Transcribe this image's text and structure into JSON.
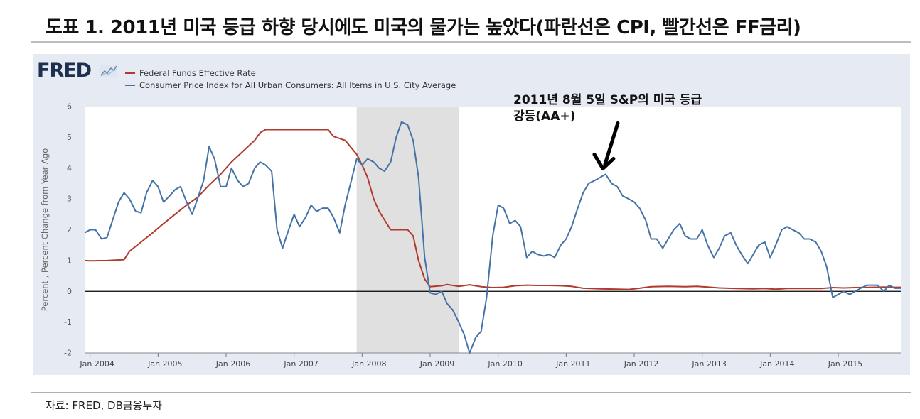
{
  "page": {
    "title": "도표 1. 2011년 미국 등급 하향 당시에도 미국의 물가는 높았다(파란선은 CPI, 빨간선은 FF금리)",
    "source": "자료: FRED, DB금융투자"
  },
  "colors": {
    "panel": "#e6ebf3",
    "plot": "#ffffff",
    "recession": "#e0e0e0",
    "ffr": "#b03a2e",
    "cpi": "#4572a7"
  },
  "chart_data": {
    "type": "line",
    "brand": "FRED",
    "title": "",
    "ylabel": "Percent , Percent Change from Year Ago",
    "ylim": [
      -2,
      6
    ],
    "yticks": [
      "6",
      "5",
      "4",
      "3",
      "2",
      "1",
      "0",
      "-1",
      "-2"
    ],
    "xlim": [
      2003.92,
      2015.92
    ],
    "xticks": [
      {
        "label": "Jan 2004",
        "x": 2004
      },
      {
        "label": "Jan 2005",
        "x": 2005
      },
      {
        "label": "Jan 2006",
        "x": 2006
      },
      {
        "label": "Jan 2007",
        "x": 2007
      },
      {
        "label": "Jan 2008",
        "x": 2008
      },
      {
        "label": "Jan 2009",
        "x": 2009
      },
      {
        "label": "Jan 2010",
        "x": 2010
      },
      {
        "label": "Jan 2011",
        "x": 2011
      },
      {
        "label": "Jan 2012",
        "x": 2012
      },
      {
        "label": "Jan 2013",
        "x": 2013
      },
      {
        "label": "Jan 2014",
        "x": 2014
      },
      {
        "label": "Jan 2015",
        "x": 2015
      }
    ],
    "recession": {
      "start": 2007.92,
      "end": 2009.42
    },
    "zero_line": 0,
    "annotation": {
      "lines": [
        "2011년 8월 5일 S&P의 미국 등급",
        "강등(AA+)"
      ],
      "arrow_target": {
        "x": 2011.55,
        "y": 3.8
      }
    },
    "series": [
      {
        "name": "Federal Funds Effective Rate",
        "color": "#b03a2e",
        "points": [
          [
            2003.92,
            1.0
          ],
          [
            2004.0,
            0.99
          ],
          [
            2004.25,
            1.0
          ],
          [
            2004.5,
            1.03
          ],
          [
            2004.58,
            1.3
          ],
          [
            2004.75,
            1.6
          ],
          [
            2004.92,
            1.9
          ],
          [
            2005.08,
            2.2
          ],
          [
            2005.25,
            2.5
          ],
          [
            2005.42,
            2.8
          ],
          [
            2005.58,
            3.05
          ],
          [
            2005.75,
            3.45
          ],
          [
            2005.92,
            3.8
          ],
          [
            2006.08,
            4.2
          ],
          [
            2006.25,
            4.55
          ],
          [
            2006.42,
            4.9
          ],
          [
            2006.5,
            5.15
          ],
          [
            2006.58,
            5.25
          ],
          [
            2006.75,
            5.25
          ],
          [
            2007.0,
            5.25
          ],
          [
            2007.25,
            5.25
          ],
          [
            2007.5,
            5.25
          ],
          [
            2007.58,
            5.03
          ],
          [
            2007.75,
            4.9
          ],
          [
            2007.92,
            4.45
          ],
          [
            2008.0,
            4.1
          ],
          [
            2008.08,
            3.7
          ],
          [
            2008.17,
            3.0
          ],
          [
            2008.25,
            2.6
          ],
          [
            2008.42,
            2.0
          ],
          [
            2008.58,
            2.0
          ],
          [
            2008.67,
            2.0
          ],
          [
            2008.75,
            1.8
          ],
          [
            2008.83,
            1.0
          ],
          [
            2008.92,
            0.4
          ],
          [
            2009.0,
            0.15
          ],
          [
            2009.17,
            0.18
          ],
          [
            2009.25,
            0.22
          ],
          [
            2009.42,
            0.16
          ],
          [
            2009.58,
            0.21
          ],
          [
            2009.75,
            0.15
          ],
          [
            2009.92,
            0.12
          ],
          [
            2010.08,
            0.13
          ],
          [
            2010.25,
            0.18
          ],
          [
            2010.42,
            0.2
          ],
          [
            2010.58,
            0.19
          ],
          [
            2010.75,
            0.19
          ],
          [
            2010.92,
            0.18
          ],
          [
            2011.08,
            0.16
          ],
          [
            2011.25,
            0.1
          ],
          [
            2011.5,
            0.08
          ],
          [
            2011.75,
            0.07
          ],
          [
            2011.92,
            0.06
          ],
          [
            2012.08,
            0.1
          ],
          [
            2012.25,
            0.15
          ],
          [
            2012.5,
            0.16
          ],
          [
            2012.75,
            0.15
          ],
          [
            2012.92,
            0.16
          ],
          [
            2013.08,
            0.14
          ],
          [
            2013.25,
            0.11
          ],
          [
            2013.5,
            0.09
          ],
          [
            2013.75,
            0.08
          ],
          [
            2013.92,
            0.09
          ],
          [
            2014.08,
            0.07
          ],
          [
            2014.25,
            0.09
          ],
          [
            2014.5,
            0.09
          ],
          [
            2014.75,
            0.09
          ],
          [
            2014.92,
            0.12
          ],
          [
            2015.08,
            0.11
          ],
          [
            2015.25,
            0.12
          ],
          [
            2015.5,
            0.13
          ],
          [
            2015.67,
            0.14
          ],
          [
            2015.83,
            0.13
          ],
          [
            2015.92,
            0.13
          ]
        ]
      },
      {
        "name": "Consumer Price Index for All Urban Consumers: All Items in U.S. City Average",
        "color": "#4572a7",
        "points": [
          [
            2003.92,
            1.9
          ],
          [
            2004.0,
            2.0
          ],
          [
            2004.08,
            2.0
          ],
          [
            2004.17,
            1.7
          ],
          [
            2004.25,
            1.75
          ],
          [
            2004.33,
            2.3
          ],
          [
            2004.42,
            2.9
          ],
          [
            2004.5,
            3.2
          ],
          [
            2004.58,
            3.0
          ],
          [
            2004.67,
            2.6
          ],
          [
            2004.75,
            2.55
          ],
          [
            2004.83,
            3.2
          ],
          [
            2004.92,
            3.6
          ],
          [
            2005.0,
            3.4
          ],
          [
            2005.08,
            2.9
          ],
          [
            2005.17,
            3.1
          ],
          [
            2005.25,
            3.3
          ],
          [
            2005.33,
            3.4
          ],
          [
            2005.42,
            2.9
          ],
          [
            2005.5,
            2.5
          ],
          [
            2005.58,
            3.0
          ],
          [
            2005.67,
            3.6
          ],
          [
            2005.75,
            4.7
          ],
          [
            2005.83,
            4.3
          ],
          [
            2005.92,
            3.4
          ],
          [
            2006.0,
            3.4
          ],
          [
            2006.08,
            4.0
          ],
          [
            2006.17,
            3.6
          ],
          [
            2006.25,
            3.4
          ],
          [
            2006.33,
            3.5
          ],
          [
            2006.42,
            4.0
          ],
          [
            2006.5,
            4.2
          ],
          [
            2006.58,
            4.1
          ],
          [
            2006.67,
            3.9
          ],
          [
            2006.75,
            2.0
          ],
          [
            2006.83,
            1.4
          ],
          [
            2006.92,
            2.0
          ],
          [
            2007.0,
            2.5
          ],
          [
            2007.08,
            2.1
          ],
          [
            2007.17,
            2.4
          ],
          [
            2007.25,
            2.8
          ],
          [
            2007.33,
            2.6
          ],
          [
            2007.42,
            2.7
          ],
          [
            2007.5,
            2.7
          ],
          [
            2007.58,
            2.4
          ],
          [
            2007.67,
            1.9
          ],
          [
            2007.75,
            2.8
          ],
          [
            2007.83,
            3.5
          ],
          [
            2007.92,
            4.3
          ],
          [
            2008.0,
            4.1
          ],
          [
            2008.08,
            4.3
          ],
          [
            2008.17,
            4.2
          ],
          [
            2008.25,
            4.0
          ],
          [
            2008.33,
            3.9
          ],
          [
            2008.42,
            4.2
          ],
          [
            2008.5,
            5.0
          ],
          [
            2008.58,
            5.5
          ],
          [
            2008.67,
            5.4
          ],
          [
            2008.75,
            4.9
          ],
          [
            2008.83,
            3.7
          ],
          [
            2008.92,
            1.1
          ],
          [
            2009.0,
            -0.05
          ],
          [
            2009.08,
            -0.1
          ],
          [
            2009.17,
            0.0
          ],
          [
            2009.25,
            -0.4
          ],
          [
            2009.33,
            -0.6
          ],
          [
            2009.42,
            -1.0
          ],
          [
            2009.5,
            -1.4
          ],
          [
            2009.58,
            -2.0
          ],
          [
            2009.67,
            -1.5
          ],
          [
            2009.75,
            -1.3
          ],
          [
            2009.83,
            -0.2
          ],
          [
            2009.92,
            1.8
          ],
          [
            2010.0,
            2.8
          ],
          [
            2010.08,
            2.7
          ],
          [
            2010.17,
            2.2
          ],
          [
            2010.25,
            2.3
          ],
          [
            2010.33,
            2.1
          ],
          [
            2010.42,
            1.1
          ],
          [
            2010.5,
            1.3
          ],
          [
            2010.58,
            1.2
          ],
          [
            2010.67,
            1.15
          ],
          [
            2010.75,
            1.2
          ],
          [
            2010.83,
            1.1
          ],
          [
            2010.92,
            1.5
          ],
          [
            2011.0,
            1.7
          ],
          [
            2011.08,
            2.1
          ],
          [
            2011.17,
            2.7
          ],
          [
            2011.25,
            3.2
          ],
          [
            2011.33,
            3.5
          ],
          [
            2011.42,
            3.6
          ],
          [
            2011.5,
            3.7
          ],
          [
            2011.58,
            3.8
          ],
          [
            2011.67,
            3.5
          ],
          [
            2011.75,
            3.4
          ],
          [
            2011.83,
            3.1
          ],
          [
            2011.92,
            3.0
          ],
          [
            2012.0,
            2.9
          ],
          [
            2012.08,
            2.7
          ],
          [
            2012.17,
            2.3
          ],
          [
            2012.25,
            1.7
          ],
          [
            2012.33,
            1.7
          ],
          [
            2012.42,
            1.4
          ],
          [
            2012.5,
            1.7
          ],
          [
            2012.58,
            2.0
          ],
          [
            2012.67,
            2.2
          ],
          [
            2012.75,
            1.8
          ],
          [
            2012.83,
            1.7
          ],
          [
            2012.92,
            1.7
          ],
          [
            2013.0,
            2.0
          ],
          [
            2013.08,
            1.5
          ],
          [
            2013.17,
            1.1
          ],
          [
            2013.25,
            1.4
          ],
          [
            2013.33,
            1.8
          ],
          [
            2013.42,
            1.9
          ],
          [
            2013.5,
            1.5
          ],
          [
            2013.58,
            1.2
          ],
          [
            2013.67,
            0.9
          ],
          [
            2013.75,
            1.2
          ],
          [
            2013.83,
            1.5
          ],
          [
            2013.92,
            1.6
          ],
          [
            2014.0,
            1.1
          ],
          [
            2014.08,
            1.5
          ],
          [
            2014.17,
            2.0
          ],
          [
            2014.25,
            2.1
          ],
          [
            2014.33,
            2.0
          ],
          [
            2014.42,
            1.9
          ],
          [
            2014.5,
            1.7
          ],
          [
            2014.58,
            1.7
          ],
          [
            2014.67,
            1.6
          ],
          [
            2014.75,
            1.3
          ],
          [
            2014.83,
            0.8
          ],
          [
            2014.92,
            -0.2
          ],
          [
            2015.0,
            -0.1
          ],
          [
            2015.08,
            0.0
          ],
          [
            2015.17,
            -0.1
          ],
          [
            2015.25,
            0.0
          ],
          [
            2015.33,
            0.1
          ],
          [
            2015.42,
            0.2
          ],
          [
            2015.5,
            0.2
          ],
          [
            2015.58,
            0.2
          ],
          [
            2015.67,
            0.0
          ],
          [
            2015.75,
            0.2
          ],
          [
            2015.83,
            0.1
          ],
          [
            2015.92,
            0.1
          ]
        ]
      }
    ]
  }
}
